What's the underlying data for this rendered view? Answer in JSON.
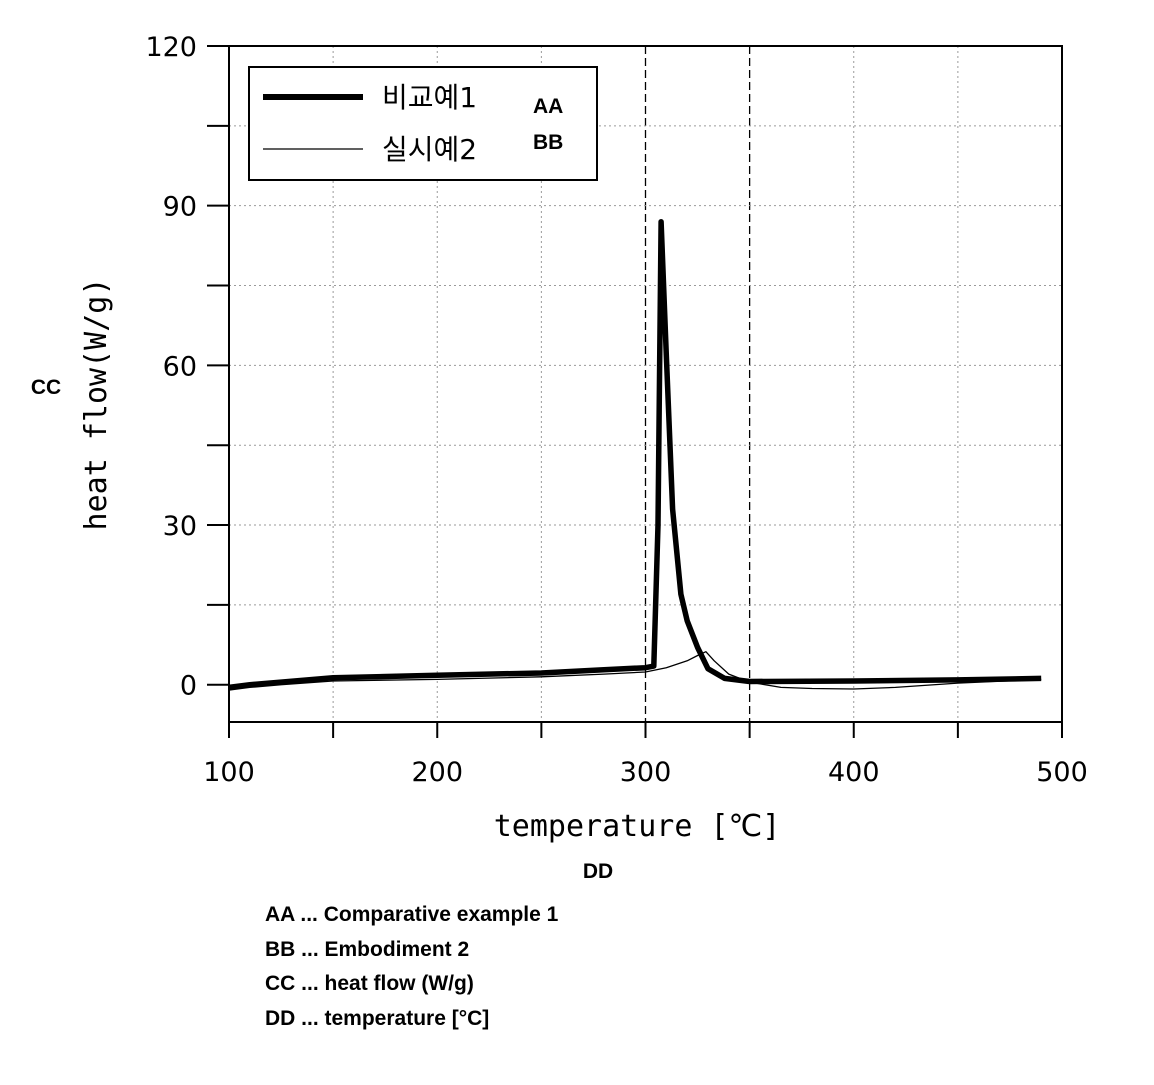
{
  "chart_data": {
    "type": "line",
    "xlabel": "temperature [℃]",
    "ylabel": "heat flow(W/g)",
    "xlim": [
      100,
      500
    ],
    "ylim": [
      -7,
      120
    ],
    "x_ticks": [
      "100",
      "200",
      "300",
      "400",
      "500"
    ],
    "y_ticks": [
      "0",
      "30",
      "60",
      "90",
      "120"
    ],
    "grid": true,
    "legend_position": "top-left",
    "tags": {
      "AA": "AA",
      "BB": "BB",
      "CC": "CC",
      "DD": "DD"
    },
    "series": [
      {
        "name": "비교예1",
        "style": "thick",
        "color": "#000000",
        "points": [
          [
            100,
            -0.5
          ],
          [
            110,
            0
          ],
          [
            125,
            0.5
          ],
          [
            150,
            1.3
          ],
          [
            200,
            1.8
          ],
          [
            250,
            2.2
          ],
          [
            280,
            2.8
          ],
          [
            300,
            3.2
          ],
          [
            304,
            3.5
          ],
          [
            306,
            30
          ],
          [
            307.5,
            87
          ],
          [
            310,
            62
          ],
          [
            313,
            33
          ],
          [
            317,
            17
          ],
          [
            320,
            12
          ],
          [
            325,
            7
          ],
          [
            330,
            3
          ],
          [
            338,
            1.2
          ],
          [
            350,
            0.6
          ],
          [
            400,
            0.7
          ],
          [
            450,
            0.9
          ],
          [
            490,
            1.2
          ]
        ]
      },
      {
        "name": "실시예2",
        "style": "thin",
        "color": "#000000",
        "points": [
          [
            100,
            -1
          ],
          [
            110,
            -0.5
          ],
          [
            125,
            0
          ],
          [
            150,
            0.7
          ],
          [
            200,
            1
          ],
          [
            250,
            1.5
          ],
          [
            280,
            2
          ],
          [
            300,
            2.4
          ],
          [
            310,
            3.2
          ],
          [
            320,
            4.5
          ],
          [
            325,
            5.5
          ],
          [
            329,
            6.2
          ],
          [
            333,
            4.5
          ],
          [
            340,
            2
          ],
          [
            350,
            0.5
          ],
          [
            365,
            -0.5
          ],
          [
            380,
            -0.7
          ],
          [
            400,
            -0.8
          ],
          [
            420,
            -0.5
          ],
          [
            450,
            0.3
          ],
          [
            490,
            1
          ]
        ]
      }
    ]
  },
  "notes": [
    "AA ... Comparative example 1",
    "BB ... Embodiment 2",
    "CC ... heat flow (W/g)",
    "DD ... temperature [°C]"
  ]
}
